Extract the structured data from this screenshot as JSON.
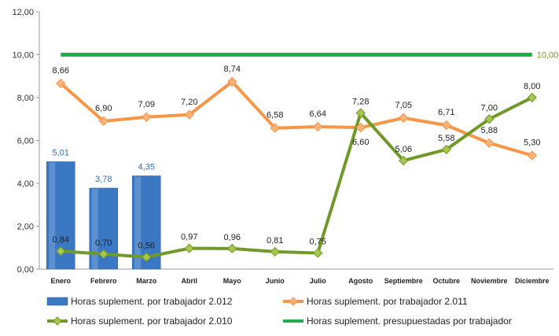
{
  "chart_data": {
    "type": "bar",
    "title": "",
    "xlabel": "",
    "ylabel": "",
    "ylim": [
      0,
      12
    ],
    "yticks": [
      "0,00",
      "2,00",
      "4,00",
      "6,00",
      "8,00",
      "10,00",
      "12,00"
    ],
    "grid": false,
    "legend_position": "bottom",
    "categories": [
      "Enero",
      "Febrero",
      "Marzo",
      "Abril",
      "Mayo",
      "Junio",
      "Julio",
      "Agosto",
      "Septiembre",
      "Octubre",
      "Noviembre",
      "Diciembre"
    ],
    "series": [
      {
        "name": "Horas suplement. por trabajador 2.012",
        "kind": "bar",
        "color": "#3a78c4",
        "values": [
          5.01,
          3.78,
          4.35,
          null,
          null,
          null,
          null,
          null,
          null,
          null,
          null,
          null
        ],
        "labels": [
          "5,01",
          "3,78",
          "4,35",
          "",
          "",
          "",
          "",
          "",
          "",
          "",
          "",
          ""
        ]
      },
      {
        "name": "Horas suplement. por trabajador 2.011",
        "kind": "line",
        "color": "#f79646",
        "values": [
          8.66,
          6.9,
          7.09,
          7.2,
          8.74,
          6.58,
          6.64,
          6.6,
          7.05,
          6.71,
          5.88,
          5.3
        ],
        "labels": [
          "8,66",
          "6,90",
          "7,09",
          "7,20",
          "8,74",
          "6,58",
          "6,64",
          "6,60",
          "7,05",
          "6,71",
          "5,88",
          "5,30"
        ]
      },
      {
        "name": "Horas suplement. por trabajador 2.010",
        "kind": "line",
        "color": "#6f9a2a",
        "values": [
          0.84,
          0.7,
          0.56,
          0.97,
          0.96,
          0.81,
          0.75,
          7.28,
          5.06,
          5.58,
          7.0,
          8.0
        ],
        "labels": [
          "0,84",
          "0,70",
          "0,56",
          "0,97",
          "0,96",
          "0,81",
          "0,75",
          "7,28",
          "5,06",
          "5,58",
          "7,00",
          "8,00"
        ]
      },
      {
        "name": "Horas suplement. presupuestadas por trabajador",
        "kind": "line",
        "color": "#1fae4b",
        "values": [
          10,
          10,
          10,
          10,
          10,
          10,
          10,
          10,
          10,
          10,
          10,
          10
        ],
        "end_label": "10,00"
      }
    ]
  }
}
